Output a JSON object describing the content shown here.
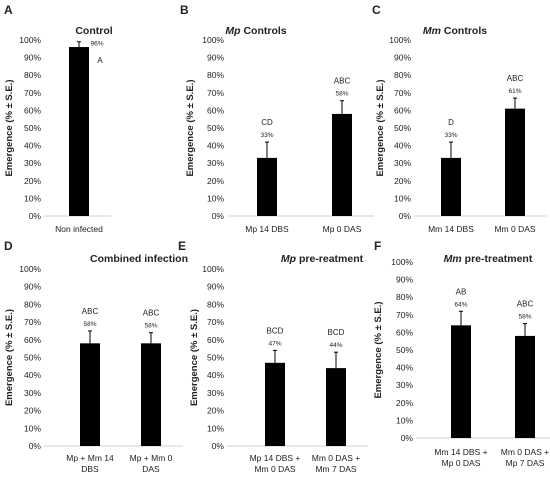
{
  "chart_data": [
    {
      "type": "bar",
      "letter": "A",
      "title": "Control",
      "title_italic": "",
      "ylabel": "Emergence (% ± S.E.)",
      "ylim": [
        0,
        100
      ],
      "yticks": [
        "0%",
        "10%",
        "20%",
        "30%",
        "40%",
        "50%",
        "60%",
        "70%",
        "80%",
        "90%",
        "100%"
      ],
      "categories": [
        [
          "Non infected"
        ]
      ],
      "values": [
        96
      ],
      "errors": [
        3
      ],
      "value_labels": [
        "96%"
      ],
      "significance": [
        "A"
      ]
    },
    {
      "type": "bar",
      "letter": "B",
      "title": " Controls",
      "title_italic": "Mp",
      "ylabel": "Emergence (% ± S.E.)",
      "ylim": [
        0,
        100
      ],
      "yticks": [
        "0%",
        "10%",
        "20%",
        "30%",
        "40%",
        "50%",
        "60%",
        "70%",
        "80%",
        "90%",
        "100%"
      ],
      "categories": [
        [
          "Mp 14 DBS"
        ],
        [
          "Mp 0 DAS"
        ]
      ],
      "values": [
        33,
        58
      ],
      "errors": [
        9,
        7.5
      ],
      "value_labels": [
        "33%",
        "58%"
      ],
      "significance": [
        "CD",
        "ABC"
      ]
    },
    {
      "type": "bar",
      "letter": "C",
      "title": " Controls",
      "title_italic": "Mm",
      "ylabel": "Emergence (% ± S.E.)",
      "ylim": [
        0,
        100
      ],
      "yticks": [
        "0%",
        "10%",
        "20%",
        "30%",
        "40%",
        "50%",
        "60%",
        "70%",
        "80%",
        "90%",
        "100%"
      ],
      "categories": [
        [
          "Mm 14 DBS"
        ],
        [
          "Mm 0 DAS"
        ]
      ],
      "values": [
        33,
        61
      ],
      "errors": [
        9,
        6
      ],
      "value_labels": [
        "33%",
        "61%"
      ],
      "significance": [
        "D",
        "ABC"
      ]
    },
    {
      "type": "bar",
      "letter": "D",
      "title": "Combined infection",
      "title_italic": "",
      "ylabel": "Emergence (% ± S.E.)",
      "ylim": [
        0,
        100
      ],
      "yticks": [
        "0%",
        "10%",
        "20%",
        "30%",
        "40%",
        "50%",
        "60%",
        "70%",
        "80%",
        "90%",
        "100%"
      ],
      "categories": [
        [
          "Mp + Mm 14",
          "DBS"
        ],
        [
          "Mp + Mm 0",
          "DAS"
        ]
      ],
      "values": [
        58,
        58
      ],
      "errors": [
        7,
        6
      ],
      "value_labels": [
        "58%",
        "58%"
      ],
      "significance": [
        "ABC",
        "ABC"
      ]
    },
    {
      "type": "bar",
      "letter": "E",
      "title": " pre-reatment",
      "title_italic": "Mp",
      "ylabel": "Emergence (% ± S.E.)",
      "ylim": [
        0,
        100
      ],
      "yticks": [
        "0%",
        "10%",
        "20%",
        "30%",
        "40%",
        "50%",
        "60%",
        "70%",
        "80%",
        "90%",
        "100%"
      ],
      "categories": [
        [
          "Mp 14 DBS +",
          "Mm 0 DAS"
        ],
        [
          "Mm 0 DAS +",
          "Mm 7 DAS"
        ]
      ],
      "values": [
        47,
        44
      ],
      "errors": [
        7,
        9
      ],
      "value_labels": [
        "47%",
        "44%"
      ],
      "significance": [
        "BCD",
        "BCD"
      ]
    },
    {
      "type": "bar",
      "letter": "F",
      "title": " pre-treatment",
      "title_italic": "Mm",
      "ylabel": "Emergence (% ± S.E.)",
      "ylim": [
        0,
        100
      ],
      "yticks": [
        "0%",
        "10%",
        "20%",
        "30%",
        "40%",
        "50%",
        "60%",
        "70%",
        "80%",
        "90%",
        "100%"
      ],
      "categories": [
        [
          "Mm 14 DBS +",
          "Mp 0 DAS"
        ],
        [
          "Mm 0 DAS +",
          "Mp 7 DAS"
        ]
      ],
      "values": [
        64,
        58
      ],
      "errors": [
        8,
        7
      ],
      "value_labels": [
        "64%",
        "58%"
      ],
      "significance": [
        "AB",
        "ABC"
      ]
    }
  ]
}
